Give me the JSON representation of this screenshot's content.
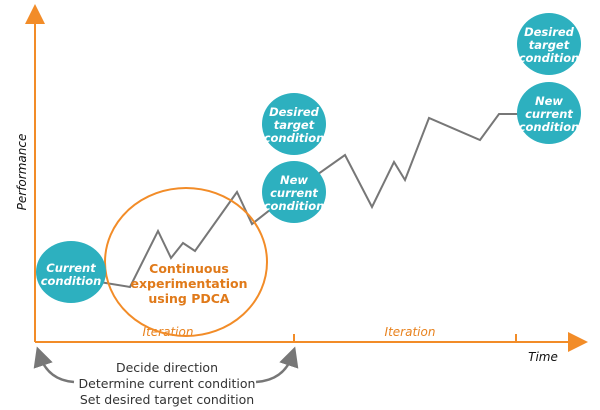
{
  "axes": {
    "y_label": "Performance",
    "x_label": "Time"
  },
  "iterations": [
    "Iteration",
    "Iteration"
  ],
  "bubbles": {
    "current": [
      "Current",
      "condition"
    ],
    "desired_1": [
      "Desired",
      "target",
      "condition"
    ],
    "new_1": [
      "New",
      "current",
      "condition"
    ],
    "desired_2": [
      "Desired",
      "target",
      "condition"
    ],
    "new_2": [
      "New",
      "current",
      "condition"
    ]
  },
  "pdca": [
    "Continuous",
    "experimentation",
    "using PDCA"
  ],
  "steps": [
    "Decide direction",
    "Determine current condition",
    "Set desired target condition"
  ],
  "colors": {
    "axis": "#f28c28",
    "bubble": "#2db0bf",
    "line": "#777777",
    "pdca_text": "#e07a1a"
  }
}
